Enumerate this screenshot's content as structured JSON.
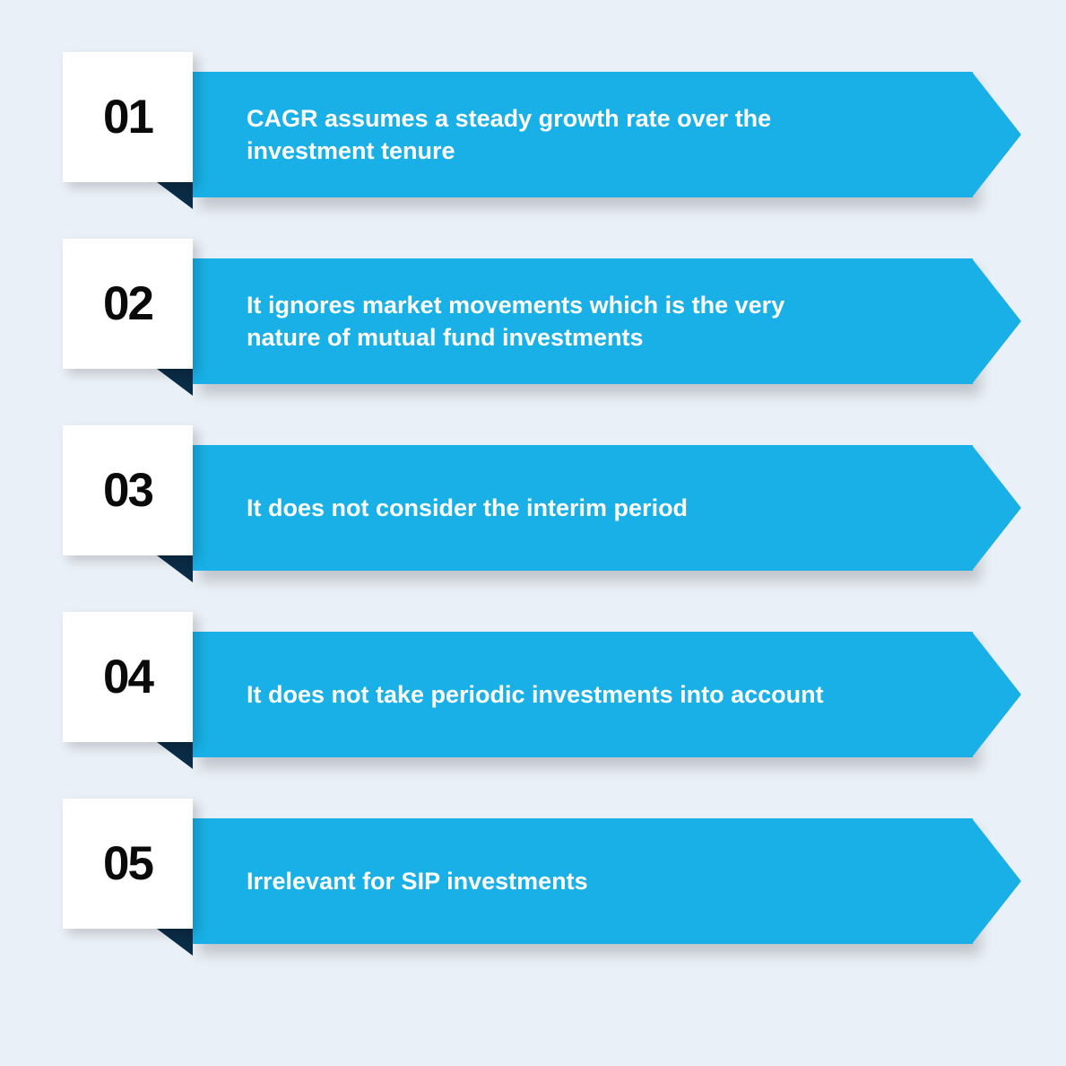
{
  "background_color": "#eaf0f7",
  "items": [
    {
      "number": "01",
      "text": "CAGR assumes a steady growth rate over the investment tenure"
    },
    {
      "number": "02",
      "text": "It ignores market movements which is the very nature of mutual fund investments"
    },
    {
      "number": "03",
      "text": "It does not consider the interim period"
    },
    {
      "number": "04",
      "text": "It does not take periodic investments into account"
    },
    {
      "number": "05",
      "text": "Irrelevant for SIP investments"
    }
  ],
  "style": {
    "number_box_bg": "#ffffff",
    "number_color": "#0a0a0a",
    "number_fontsize": 53,
    "number_box_shadow": "6px 6px 12px rgba(0,0,0,0.18)",
    "fold_color": "#0a2d47",
    "bar_color": "#18b0e6",
    "bar_text_color": "#ffffff",
    "bar_text_fontsize": 27,
    "bar_text_maxwidth": 680
  }
}
